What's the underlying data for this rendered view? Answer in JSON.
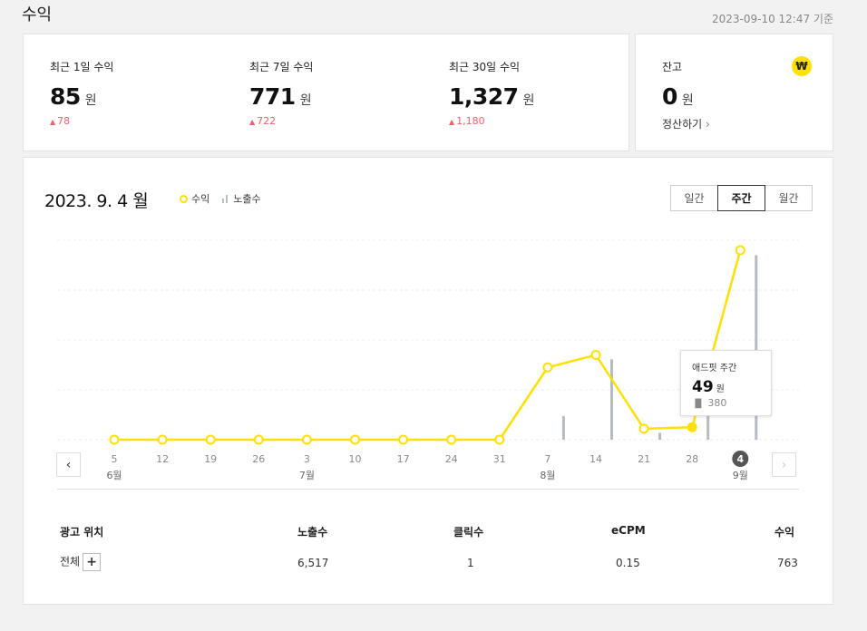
{
  "header": {
    "title": "수익",
    "as_of": "2023-09-10 12:47 기준"
  },
  "summary": {
    "stats": [
      {
        "label": "최근 1일 수익",
        "value": "85",
        "unit": "원",
        "change": "78"
      },
      {
        "label": "최근 7일 수익",
        "value": "771",
        "unit": "원",
        "change": "722"
      },
      {
        "label": "최근 30일 수익",
        "value": "1,327",
        "unit": "원",
        "change": "1,180"
      }
    ]
  },
  "balance": {
    "label": "잔고",
    "value": "0",
    "unit": "원",
    "settle_label": "정산하기",
    "badge": "₩"
  },
  "chart_card": {
    "date": "2023. 9. 4 월",
    "legend_revenue": "수익",
    "legend_impressions": "노출수",
    "periods": [
      "일간",
      "주간",
      "월간"
    ],
    "active_period": "주간"
  },
  "chart_data": {
    "type": "line",
    "categories": [
      "5",
      "12",
      "19",
      "26",
      "3",
      "10",
      "17",
      "24",
      "31",
      "7",
      "14",
      "21",
      "28",
      "4"
    ],
    "month_labels": [
      {
        "index": 0,
        "label": "6월"
      },
      {
        "index": 4,
        "label": "7월"
      },
      {
        "index": 9,
        "label": "8월"
      },
      {
        "index": 13,
        "label": "9월"
      }
    ],
    "selected_index": 13,
    "series": [
      {
        "name": "수익",
        "kind": "line",
        "color": "#ffe000",
        "values": [
          0,
          0,
          0,
          0,
          0,
          0,
          0,
          0,
          0,
          145,
          170,
          22,
          25,
          380
        ]
      },
      {
        "name": "노출수",
        "kind": "bar",
        "color": "#b7bcc2",
        "values": [
          0,
          0,
          0,
          0,
          0,
          0,
          0,
          0,
          0,
          380,
          1290,
          110,
          380,
          2960
        ]
      }
    ],
    "ylim_revenue": [
      0,
      400
    ],
    "ylim_impressions": [
      0,
      3200
    ],
    "grid": true
  },
  "tooltip": {
    "title": "애드핏 주간",
    "value": "49",
    "unit": "원",
    "impressions": "380"
  },
  "table": {
    "headers": [
      "광고 위치",
      "노출수",
      "클릭수",
      "eCPM",
      "수익"
    ],
    "rows": [
      {
        "position": "전체",
        "impressions": "6,517",
        "clicks": "1",
        "ecpm": "0.15",
        "revenue": "763"
      }
    ]
  }
}
